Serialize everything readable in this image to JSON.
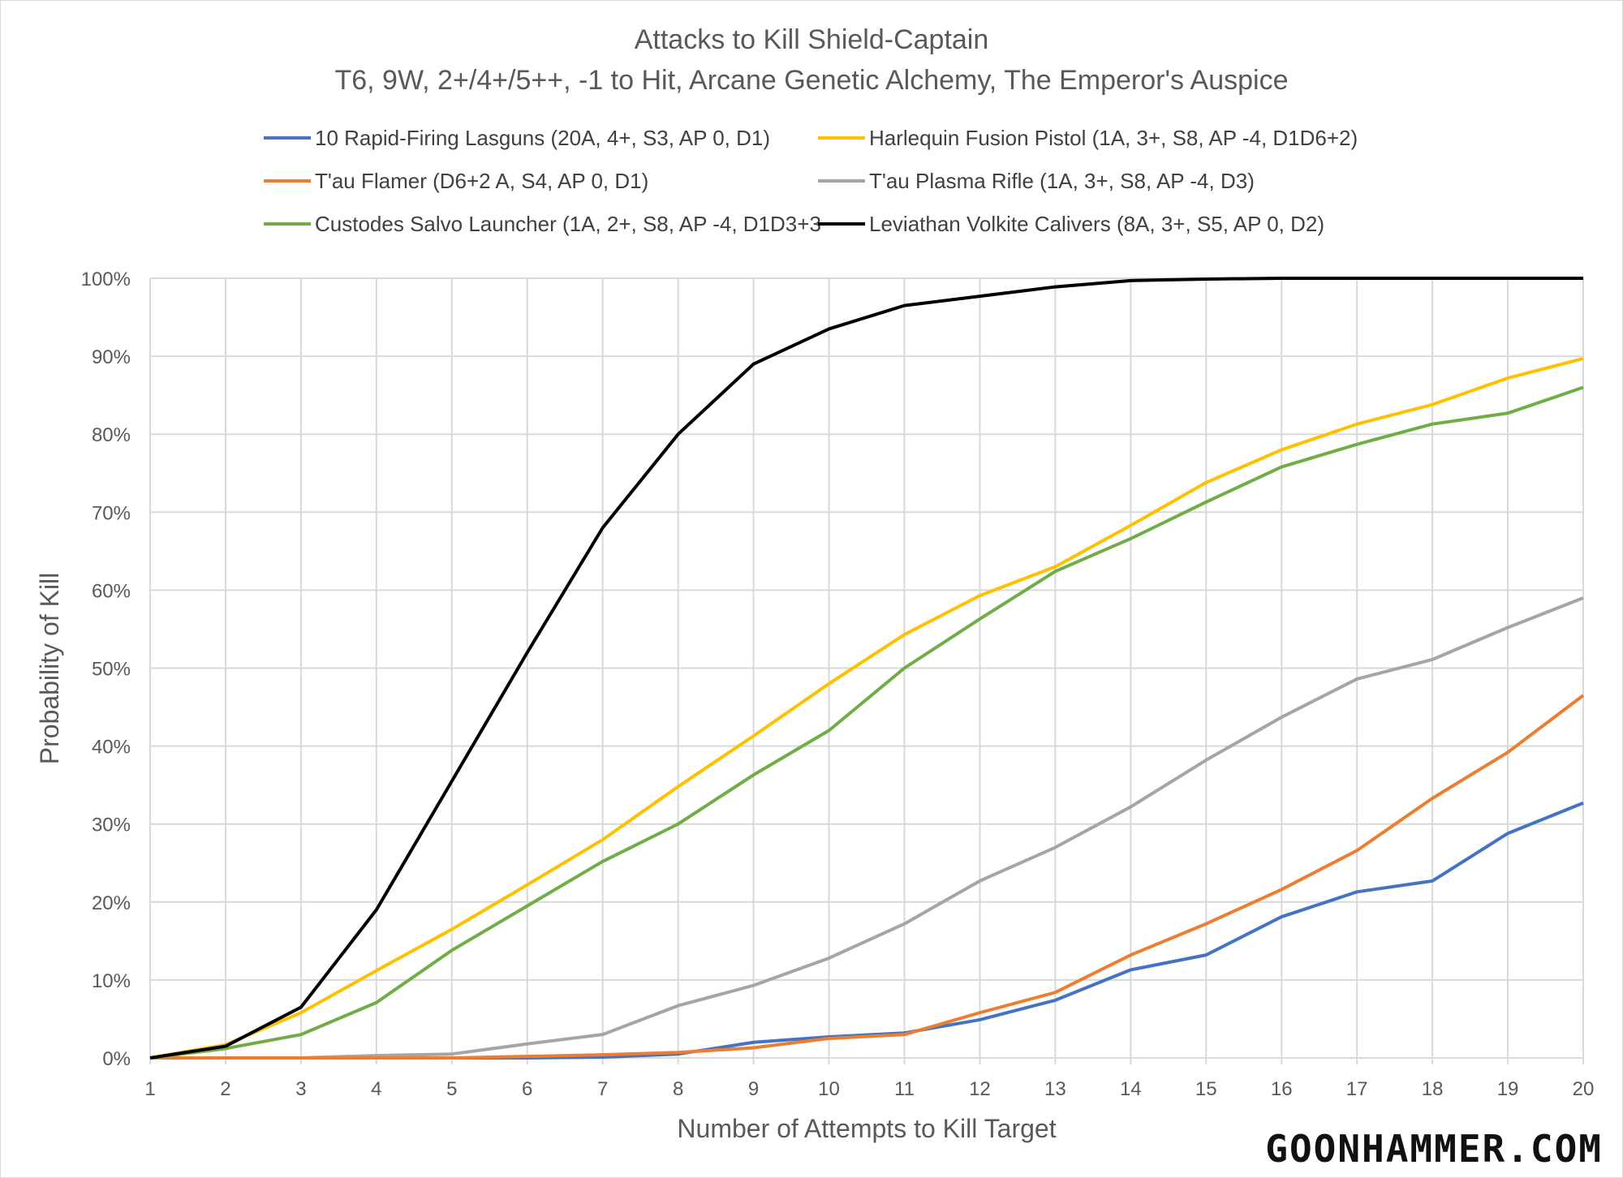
{
  "chart_data": {
    "type": "line",
    "title": "Attacks to Kill Shield-Captain",
    "subtitle": "T6, 9W, 2+/4+/5++, -1 to Hit, Arcane Genetic Alchemy, The Emperor's Auspice",
    "xlabel": "Number of Attempts to Kill Target",
    "ylabel": "Probability of Kill",
    "x": [
      1,
      2,
      3,
      4,
      5,
      6,
      7,
      8,
      9,
      10,
      11,
      12,
      13,
      14,
      15,
      16,
      17,
      18,
      19,
      20
    ],
    "xlim": [
      1,
      20
    ],
    "ylim": [
      0,
      100
    ],
    "y_ticks": [
      "0%",
      "10%",
      "20%",
      "30%",
      "40%",
      "50%",
      "60%",
      "70%",
      "80%",
      "90%",
      "100%"
    ],
    "grid": true,
    "legend_position": "top",
    "series": [
      {
        "name": "10 Rapid-Firing Lasguns (20A, 4+, S3, AP 0, D1)",
        "color": "#4472c4",
        "values": [
          0,
          0,
          0,
          0,
          0,
          0,
          0.1,
          0.5,
          2,
          2.7,
          3.2,
          4.9,
          7.4,
          11.3,
          13.2,
          18.1,
          21.3,
          22.7,
          28.8,
          32.7
        ]
      },
      {
        "name": "Harlequin Fusion Pistol (1A, 3+, S8, AP -4, D1D6+2)",
        "color": "#ffc000",
        "values": [
          0,
          1.7,
          5.8,
          11.2,
          16.5,
          22.2,
          28,
          34.8,
          41.3,
          48,
          54.3,
          59.3,
          63,
          68.3,
          73.8,
          78,
          81.3,
          83.8,
          87.2,
          89.7
        ]
      },
      {
        "name": "T'au Flamer (D6+2 A, S4, AP 0, D1)",
        "color": "#ed7d31",
        "values": [
          0,
          0,
          0,
          0,
          0,
          0.2,
          0.4,
          0.7,
          1.3,
          2.5,
          3,
          5.8,
          8.4,
          13.2,
          17.2,
          21.6,
          26.6,
          33.3,
          39.2,
          46.5
        ]
      },
      {
        "name": "T'au Plasma Rifle (1A, 3+, S8, AP -4, D3)",
        "color": "#a5a5a5",
        "values": [
          0,
          0,
          0,
          0.3,
          0.5,
          1.8,
          3,
          6.7,
          9.3,
          12.8,
          17.2,
          22.7,
          27,
          32.2,
          38.2,
          43.7,
          48.6,
          51.1,
          55.2,
          59
        ]
      },
      {
        "name": "Custodes Salvo Launcher (1A, 2+, S8, AP -4, D1D3+3",
        "color": "#70ad47",
        "values": [
          0,
          1.2,
          3,
          7.1,
          13.8,
          19.5,
          25.2,
          30,
          36.3,
          42,
          50,
          56.3,
          62.4,
          66.6,
          71.3,
          75.8,
          78.7,
          81.3,
          82.7,
          86
        ]
      },
      {
        "name": "Leviathan Volkite Calivers (8A, 3+, S5, AP 0, D2)",
        "color": "#000000",
        "values": [
          0,
          1.5,
          6.5,
          19,
          35.5,
          52,
          68,
          80,
          89,
          93.5,
          96.5,
          97.7,
          98.9,
          99.7,
          99.9,
          100,
          100,
          100,
          100,
          100
        ]
      }
    ]
  },
  "watermark": "GOONHAMMER.COM"
}
